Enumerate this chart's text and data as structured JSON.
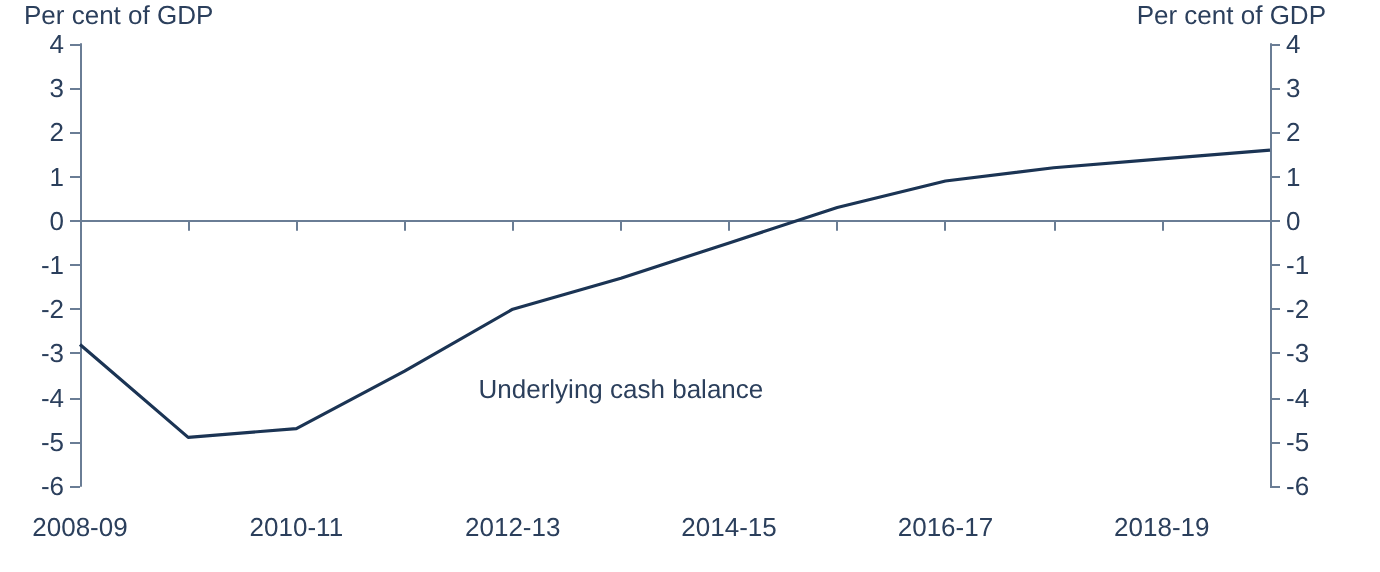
{
  "chart_data": {
    "type": "line",
    "ylabel": "Per cent of GDP",
    "y2label": "Per cent of GDP",
    "categories": [
      "2008-09",
      null,
      "2010-11",
      null,
      "2012-13",
      null,
      "2014-15",
      null,
      "2016-17",
      null,
      "2018-19",
      null
    ],
    "series": [
      {
        "name": "Underlying cash balance",
        "color": "#1b3454",
        "values": [
          -2.8,
          -4.9,
          -4.7,
          -3.4,
          -2.0,
          -1.3,
          -0.5,
          0.3,
          0.9,
          1.2,
          1.4,
          1.6
        ]
      }
    ],
    "ylim": [
      -6,
      4
    ],
    "yticks": [
      -6,
      -5,
      -4,
      -3,
      -2,
      -1,
      0,
      1,
      2,
      3,
      4
    ],
    "y2lim": [
      -6,
      4
    ],
    "y2ticks": [
      -6,
      -5,
      -4,
      -3,
      -2,
      -1,
      0,
      1,
      2,
      3,
      4
    ],
    "ref_lines": [
      {
        "axis": "y",
        "value": 0
      }
    ],
    "grid": false,
    "legend": false,
    "marker": "none",
    "line_style": "solid"
  }
}
